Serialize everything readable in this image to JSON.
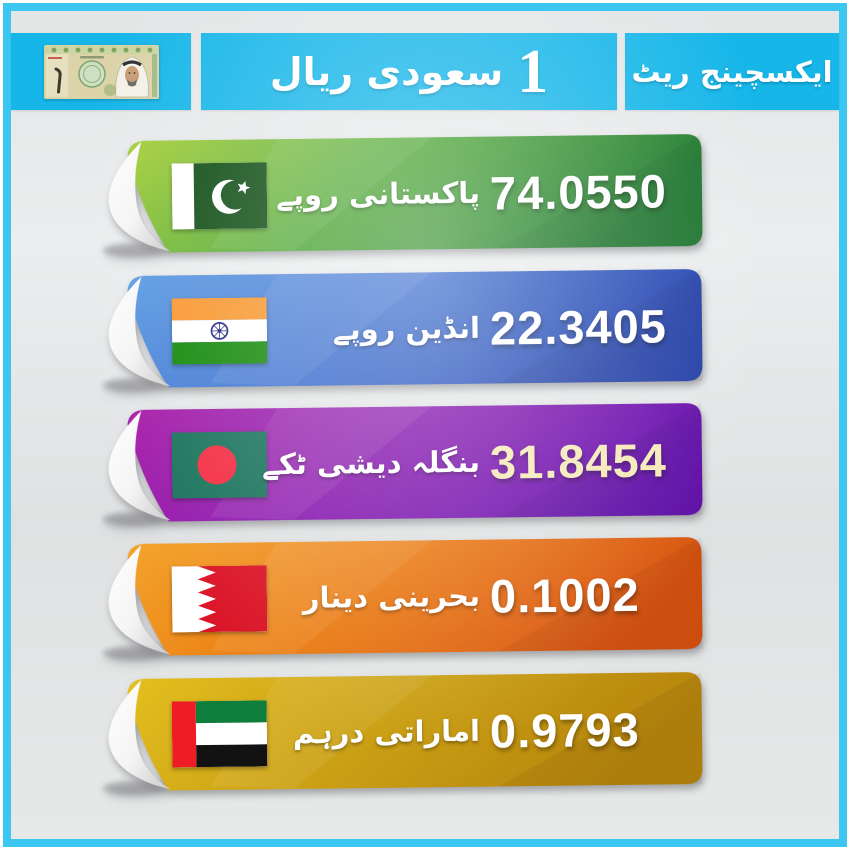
{
  "header": {
    "title_number": "1",
    "title_text": "سعودی ریال",
    "label": "ایکسچینج ریٹ",
    "banknote": "saudi-1-riyal-banknote"
  },
  "colors": {
    "frame_border": "#3cc7f3",
    "header_box": "#16b6e9",
    "background": "#e5e7e8"
  },
  "rows": [
    {
      "flag": "pakistan-flag",
      "name": "پاکستانی روپے",
      "value": "74.0550",
      "value_color": "#ffffff",
      "ribbon": [
        "#a9d03c",
        "#4ea832",
        "#1d7a2f"
      ]
    },
    {
      "flag": "india-flag",
      "name": "انڈین روپے",
      "value": "22.3405",
      "value_color": "#ffffff",
      "ribbon": [
        "#5d9de2",
        "#3a6fd0",
        "#2342ae"
      ]
    },
    {
      "flag": "bangladesh-flag",
      "name": "بنگلہ دیشی ٹکے",
      "value": "31.8454",
      "value_color": "#f5e9b8",
      "ribbon": [
        "#a81fa8",
        "#8a16ae",
        "#640eae"
      ]
    },
    {
      "flag": "bahrain-flag",
      "name": "بحرینی دینار",
      "value": "0.1002",
      "value_color": "#ffffff",
      "ribbon": [
        "#f3a42c",
        "#eb7d11",
        "#d8520f"
      ]
    },
    {
      "flag": "uae-flag",
      "name": "اماراتی درہم",
      "value": "0.9793",
      "value_color": "#ffffff",
      "ribbon": [
        "#e3bf1f",
        "#cda315",
        "#b7850d"
      ]
    }
  ],
  "chart_data": {
    "type": "table",
    "title": "1 سعودی ریال",
    "subtitle": "ایکسچینج ریٹ",
    "categories": [
      "پاکستانی روپے",
      "انڈین روپے",
      "بنگلہ دیشی ٹکے",
      "بحرینی دینار",
      "اماراتی درہم"
    ],
    "values": [
      74.055,
      22.3405,
      31.8454,
      0.1002,
      0.9793
    ]
  }
}
